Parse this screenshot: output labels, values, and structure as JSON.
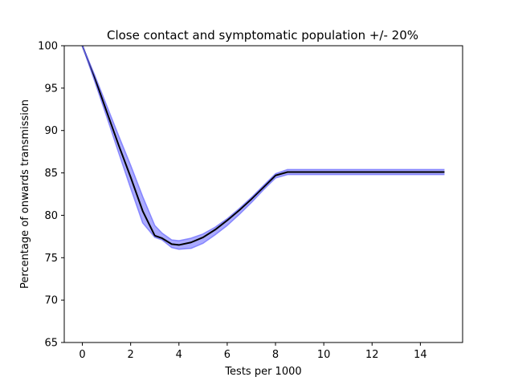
{
  "chart_data": {
    "type": "line",
    "title": "Close contact and symptomatic population +/- 20%",
    "xlabel": "Tests per 1000",
    "ylabel": "Percentage of onwards transmission",
    "xlim": [
      -0.75,
      15.75
    ],
    "ylim": [
      65,
      100
    ],
    "xticks": [
      0,
      2,
      4,
      6,
      8,
      10,
      12,
      14
    ],
    "xtick_labels": [
      "0",
      "2",
      "4",
      "6",
      "8",
      "10",
      "12",
      "14"
    ],
    "yticks": [
      65,
      70,
      75,
      80,
      85,
      90,
      95,
      100
    ],
    "ytick_labels": [
      "65",
      "70",
      "75",
      "80",
      "85",
      "90",
      "95",
      "100"
    ],
    "grid": false,
    "x": [
      0,
      0.5,
      1,
      1.5,
      2,
      2.5,
      3,
      3.3,
      3.7,
      4,
      4.5,
      5,
      5.5,
      6,
      6.5,
      7,
      7.5,
      8,
      8.5,
      10,
      12,
      14,
      15
    ],
    "series": [
      {
        "role": "central",
        "color": "#000000",
        "values": [
          100,
          96.3,
          92.3,
          88.3,
          84.5,
          80.5,
          77.6,
          77.3,
          76.6,
          76.5,
          76.8,
          77.4,
          78.3,
          79.4,
          80.6,
          81.9,
          83.3,
          84.7,
          85.1,
          85.1,
          85.1,
          85.1,
          85.1
        ]
      },
      {
        "role": "upper-bound",
        "color": "#6666ff",
        "values": [
          100,
          96.6,
          93.0,
          89.4,
          85.9,
          82.2,
          78.8,
          77.9,
          77.1,
          77.0,
          77.3,
          77.8,
          78.6,
          79.6,
          80.8,
          82.1,
          83.5,
          84.9,
          85.4,
          85.4,
          85.4,
          85.4,
          85.4
        ]
      },
      {
        "role": "lower-bound",
        "color": "#6666ff",
        "values": [
          100,
          95.9,
          91.7,
          87.4,
          83.2,
          79.1,
          77.4,
          77.1,
          76.2,
          76.0,
          76.1,
          76.7,
          77.7,
          78.8,
          80.1,
          81.5,
          83.0,
          84.4,
          84.8,
          84.8,
          84.8,
          84.8,
          84.8
        ]
      }
    ]
  }
}
